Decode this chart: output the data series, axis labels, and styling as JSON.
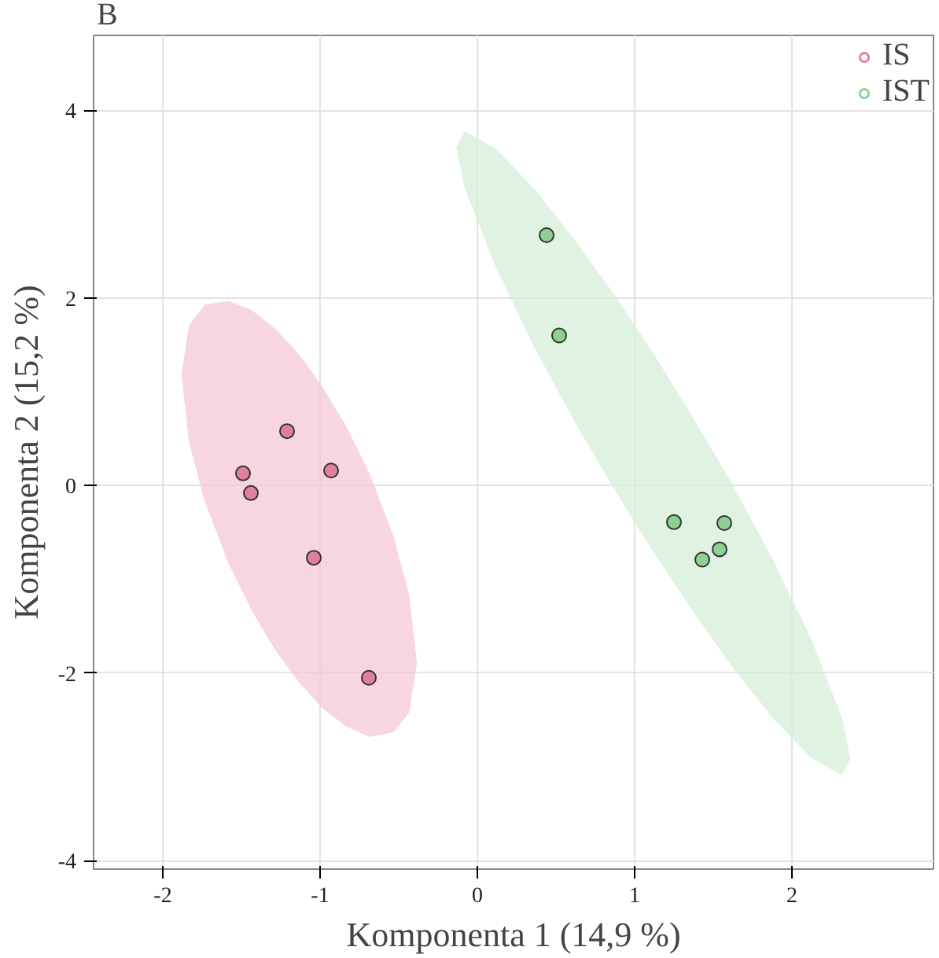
{
  "chart_data": {
    "type": "scatter",
    "xlabel": "Komponenta 1 (14,9 %)",
    "ylabel": "Komponenta 2 (15,2 %)",
    "annotations": [
      "B"
    ],
    "xlim": [
      -2.44,
      2.9
    ],
    "ylim": [
      -4.09,
      4.8
    ],
    "xticks": [
      -2,
      -1,
      0,
      1,
      2
    ],
    "yticks": [
      -4,
      -2,
      0,
      2,
      4
    ],
    "grid": true,
    "legend": "top right",
    "marker": "circle",
    "series": [
      {
        "type": "area",
        "marker": "none",
        "color": "#f5c8d5",
        "x": [
          -1.882,
          -1.833,
          -1.733,
          -1.583,
          -1.433,
          -1.283,
          -1.133,
          -0.983,
          -0.833,
          -0.683,
          -0.533,
          -0.433,
          -0.384,
          -0.433,
          -0.533,
          -0.683,
          -0.833,
          -0.983,
          -1.133,
          -1.283,
          -1.433,
          -1.583,
          -1.733,
          -1.833
        ],
        "values": [
          1.19,
          1.71,
          1.93,
          1.97,
          1.87,
          1.67,
          1.4,
          1.05,
          0.63,
          0.12,
          -0.54,
          -1.17,
          -1.89,
          -2.42,
          -2.63,
          -2.68,
          -2.57,
          -2.38,
          -2.1,
          -1.76,
          -1.34,
          -0.83,
          -0.17,
          0.46
        ]
      },
      {
        "type": "area",
        "marker": "none",
        "color": "#d5eed8",
        "x": [
          -0.134,
          -0.081,
          0.119,
          0.369,
          0.619,
          0.869,
          1.119,
          1.369,
          1.619,
          1.869,
          2.119,
          2.319,
          2.372,
          2.319,
          2.119,
          1.869,
          1.619,
          1.369,
          1.119,
          0.869,
          0.619,
          0.369,
          0.119,
          -0.081
        ],
        "values": [
          3.61,
          3.78,
          3.59,
          3.15,
          2.62,
          2.04,
          1.41,
          0.73,
          0.02,
          -0.76,
          -1.62,
          -2.48,
          -2.92,
          -3.09,
          -2.9,
          -2.46,
          -1.93,
          -1.34,
          -0.71,
          -0.04,
          0.68,
          1.45,
          2.32,
          3.17
        ]
      },
      {
        "name": "IS",
        "color": "#e0809c",
        "x": [
          -1.21,
          -1.49,
          -1.44,
          -0.93,
          -1.04,
          -0.69
        ],
        "values": [
          0.58,
          0.13,
          -0.08,
          0.16,
          -0.77,
          -2.05
        ]
      },
      {
        "name": "IST",
        "color": "#8ecf94",
        "x": [
          0.44,
          0.52,
          1.25,
          1.57,
          1.54,
          1.43
        ],
        "values": [
          2.67,
          1.6,
          -0.39,
          -0.4,
          -0.68,
          -0.79
        ]
      }
    ]
  }
}
